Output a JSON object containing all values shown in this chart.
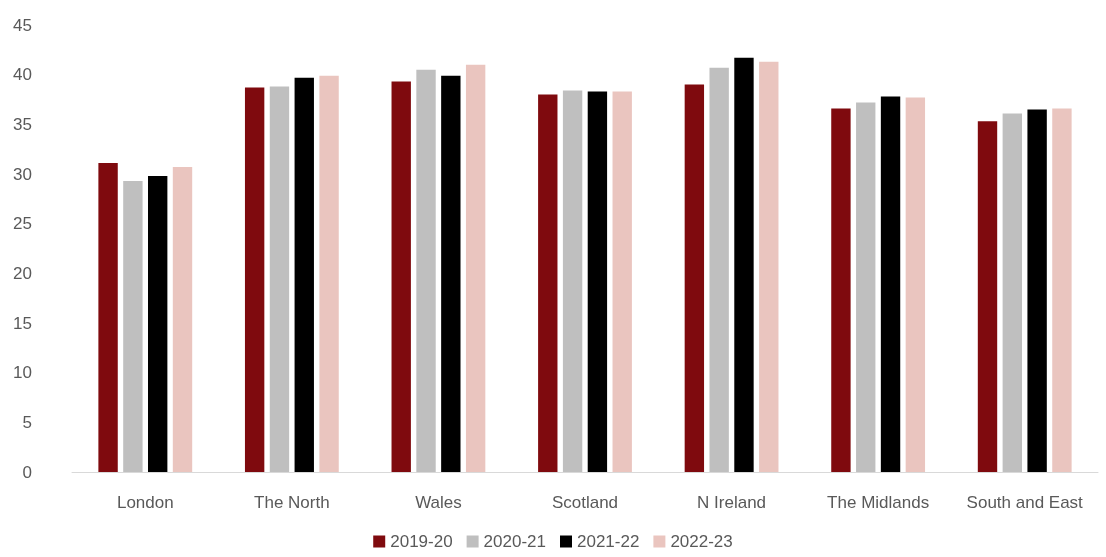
{
  "chart_data": {
    "type": "bar",
    "categories": [
      "London",
      "The North",
      "Wales",
      "Scotland",
      "N Ireland",
      "The Midlands",
      "South and East"
    ],
    "series": [
      {
        "name": "2019-20",
        "color": "#7f0a0e",
        "values": [
          31.1,
          38.7,
          39.3,
          38.0,
          39.0,
          36.6,
          35.3
        ]
      },
      {
        "name": "2020-21",
        "color": "#bfbfbf",
        "values": [
          29.3,
          38.8,
          40.5,
          38.4,
          40.7,
          37.2,
          36.1
        ]
      },
      {
        "name": "2021-22",
        "color": "#000000",
        "values": [
          29.8,
          39.7,
          39.9,
          38.3,
          41.7,
          37.8,
          36.5
        ]
      },
      {
        "name": "2022-23",
        "color": "#eac5bf",
        "values": [
          30.7,
          39.9,
          41.0,
          38.3,
          41.3,
          37.7,
          36.6
        ]
      }
    ],
    "ylim": [
      0,
      45
    ],
    "yticks": [
      0,
      5,
      10,
      15,
      20,
      25,
      30,
      35,
      40,
      45
    ],
    "grid": false,
    "legend": "bottom"
  }
}
